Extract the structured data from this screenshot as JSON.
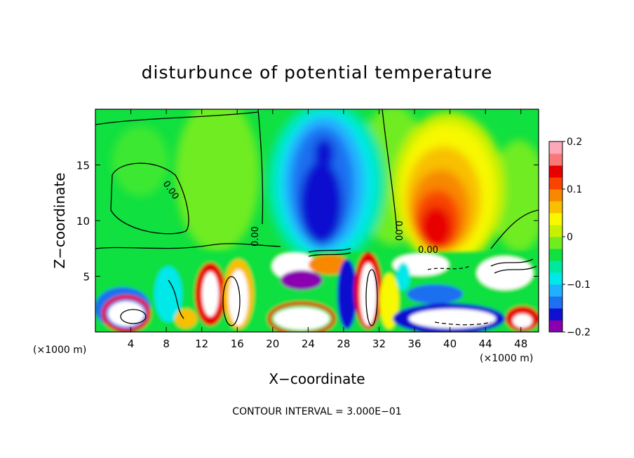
{
  "chart_data": {
    "type": "heatmap",
    "title": "disturbunce of potential temperature",
    "xlabel": "X−coordinate",
    "ylabel": "Z−coordinate",
    "x_unit_left": "(×1000 m)",
    "x_unit_right": "(×1000 m)",
    "xlim": [
      0,
      50
    ],
    "ylim": [
      0,
      20
    ],
    "x_ticks": [
      4,
      8,
      12,
      16,
      20,
      24,
      28,
      32,
      36,
      40,
      44,
      48
    ],
    "x_tick_labels": [
      "4",
      "8",
      "12",
      "16",
      "20",
      "24",
      "28",
      "32",
      "36",
      "40",
      "44",
      "48"
    ],
    "y_ticks": [
      5,
      10,
      15
    ],
    "y_tick_labels": [
      "5",
      "10",
      "15"
    ],
    "colorbar": {
      "range": [
        -0.2,
        0.2
      ],
      "ticks": [
        0.2,
        0.1,
        0,
        -0.1,
        -0.2
      ],
      "tick_labels": [
        "0.2",
        "0.1",
        "0",
        "−0.1",
        "−0.2"
      ],
      "colors": [
        "#8a00b0",
        "#1010d0",
        "#1e70f0",
        "#20b0ff",
        "#00e8e8",
        "#00e8a0",
        "#10e040",
        "#70ec20",
        "#c8f000",
        "#f8f800",
        "#f8c000",
        "#f88800",
        "#f84400",
        "#e80000",
        "#f87878",
        "#fca8b8"
      ]
    },
    "contour_labels": [
      "0.00",
      "0.00",
      "0.00",
      "0.00"
    ],
    "footer": "CONTOUR INTERVAL = 3.000E−01",
    "features": [
      {
        "kind": "blob",
        "x": 26,
        "z": 12,
        "value": -0.14
      },
      {
        "kind": "blob",
        "x": 26,
        "z": 16,
        "value": -0.17
      },
      {
        "kind": "blob",
        "x": 40,
        "z": 11,
        "value": 0.14
      },
      {
        "kind": "blob",
        "x": 40,
        "z": 15,
        "value": 0.06
      },
      {
        "kind": "blob",
        "x": 15,
        "z": 13,
        "value": 0.04
      },
      {
        "kind": "blob",
        "x": 6,
        "z": 12,
        "value": 0.0
      }
    ]
  }
}
